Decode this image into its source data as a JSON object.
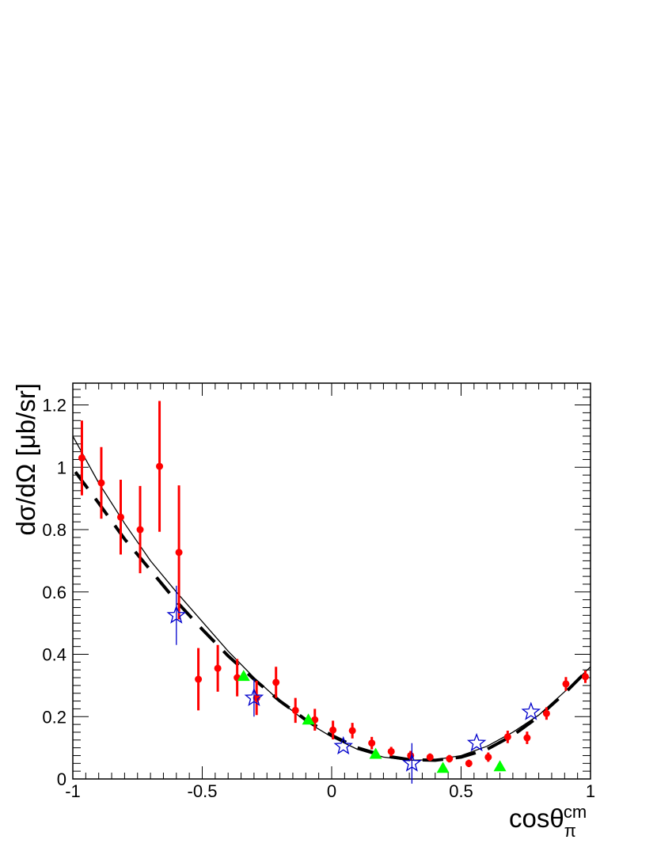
{
  "chart_data": {
    "type": "scatter",
    "xlabel": "cosθ",
    "xlabel_sub": "π",
    "xlabel_sup": "cm",
    "ylabel": "dσ/dΩ [μb/sr]",
    "xlim": [
      -1,
      1
    ],
    "ylim": [
      0,
      1.27
    ],
    "x_ticks": [
      "-1",
      "-0.5",
      "0",
      "0.5",
      "1"
    ],
    "y_ticks": [
      "0",
      "0.2",
      "0.4",
      "0.6",
      "0.8",
      "1",
      "1.2"
    ],
    "grid": false,
    "series": [
      {
        "marker": "circle",
        "color": "#ff0000",
        "points": [
          {
            "x": -0.965,
            "y": 1.03,
            "err": 0.12
          },
          {
            "x": -0.89,
            "y": 0.95,
            "err": 0.115
          },
          {
            "x": -0.815,
            "y": 0.84,
            "err": 0.12
          },
          {
            "x": -0.74,
            "y": 0.8,
            "err": 0.14
          },
          {
            "x": -0.665,
            "y": 1.003,
            "err": 0.21
          },
          {
            "x": -0.59,
            "y": 0.727,
            "err": 0.215
          },
          {
            "x": -0.515,
            "y": 0.32,
            "err": 0.1
          },
          {
            "x": -0.44,
            "y": 0.355,
            "err": 0.075
          },
          {
            "x": -0.365,
            "y": 0.325,
            "err": 0.06
          },
          {
            "x": -0.29,
            "y": 0.26,
            "err": 0.055
          },
          {
            "x": -0.215,
            "y": 0.31,
            "err": 0.05
          },
          {
            "x": -0.14,
            "y": 0.22,
            "err": 0.04
          },
          {
            "x": -0.065,
            "y": 0.19,
            "err": 0.035
          },
          {
            "x": 0.005,
            "y": 0.157,
            "err": 0.03
          },
          {
            "x": 0.08,
            "y": 0.155,
            "err": 0.025
          },
          {
            "x": 0.155,
            "y": 0.115,
            "err": 0.02
          },
          {
            "x": 0.23,
            "y": 0.088,
            "err": 0.015
          },
          {
            "x": 0.305,
            "y": 0.075,
            "err": 0.015
          },
          {
            "x": 0.38,
            "y": 0.07,
            "err": 0.012
          },
          {
            "x": 0.455,
            "y": 0.065,
            "err": 0.012
          },
          {
            "x": 0.53,
            "y": 0.05,
            "err": 0.012
          },
          {
            "x": 0.605,
            "y": 0.07,
            "err": 0.015
          },
          {
            "x": 0.68,
            "y": 0.135,
            "err": 0.02
          },
          {
            "x": 0.755,
            "y": 0.132,
            "err": 0.02
          },
          {
            "x": 0.83,
            "y": 0.21,
            "err": 0.02
          },
          {
            "x": 0.905,
            "y": 0.305,
            "err": 0.022
          },
          {
            "x": 0.98,
            "y": 0.328,
            "err": 0.02
          }
        ]
      },
      {
        "marker": "open-star",
        "color": "#0000cc",
        "points": [
          {
            "x": -0.6,
            "y": 0.525,
            "err": 0.095
          },
          {
            "x": -0.3,
            "y": 0.26,
            "err": 0.06
          },
          {
            "x": 0.045,
            "y": 0.105,
            "err": 0.0
          },
          {
            "x": 0.31,
            "y": 0.05,
            "err": 0.065
          },
          {
            "x": 0.56,
            "y": 0.115,
            "err": 0.0
          },
          {
            "x": 0.77,
            "y": 0.215,
            "err": 0.0
          }
        ]
      },
      {
        "marker": "filled-triangle",
        "color": "#00ff00",
        "points": [
          {
            "x": -0.34,
            "y": 0.33
          },
          {
            "x": -0.09,
            "y": 0.19
          },
          {
            "x": 0.17,
            "y": 0.08
          },
          {
            "x": 0.43,
            "y": 0.035
          },
          {
            "x": 0.65,
            "y": 0.04
          }
        ]
      }
    ],
    "curves": [
      {
        "style": "solid",
        "color": "#000000",
        "points": [
          {
            "x": -1.0,
            "y": 1.1
          },
          {
            "x": -0.9,
            "y": 0.95
          },
          {
            "x": -0.8,
            "y": 0.82
          },
          {
            "x": -0.7,
            "y": 0.7
          },
          {
            "x": -0.6,
            "y": 0.6
          },
          {
            "x": -0.5,
            "y": 0.505
          },
          {
            "x": -0.4,
            "y": 0.41
          },
          {
            "x": -0.3,
            "y": 0.325
          },
          {
            "x": -0.2,
            "y": 0.25
          },
          {
            "x": -0.1,
            "y": 0.185
          },
          {
            "x": 0.0,
            "y": 0.135
          },
          {
            "x": 0.1,
            "y": 0.095
          },
          {
            "x": 0.2,
            "y": 0.07
          },
          {
            "x": 0.3,
            "y": 0.06
          },
          {
            "x": 0.4,
            "y": 0.062
          },
          {
            "x": 0.5,
            "y": 0.075
          },
          {
            "x": 0.6,
            "y": 0.105
          },
          {
            "x": 0.7,
            "y": 0.15
          },
          {
            "x": 0.8,
            "y": 0.205
          },
          {
            "x": 0.9,
            "y": 0.28
          },
          {
            "x": 1.0,
            "y": 0.36
          }
        ]
      },
      {
        "style": "dashed",
        "color": "#000000",
        "points": [
          {
            "x": -0.99,
            "y": 0.985
          },
          {
            "x": -0.9,
            "y": 0.885
          },
          {
            "x": -0.8,
            "y": 0.77
          },
          {
            "x": -0.7,
            "y": 0.67
          },
          {
            "x": -0.6,
            "y": 0.57
          },
          {
            "x": -0.5,
            "y": 0.48
          },
          {
            "x": -0.4,
            "y": 0.395
          },
          {
            "x": -0.3,
            "y": 0.32
          },
          {
            "x": -0.2,
            "y": 0.25
          },
          {
            "x": -0.1,
            "y": 0.19
          },
          {
            "x": 0.0,
            "y": 0.14
          },
          {
            "x": 0.1,
            "y": 0.1
          },
          {
            "x": 0.2,
            "y": 0.075
          },
          {
            "x": 0.3,
            "y": 0.062
          },
          {
            "x": 0.4,
            "y": 0.06
          },
          {
            "x": 0.5,
            "y": 0.07
          },
          {
            "x": 0.6,
            "y": 0.095
          },
          {
            "x": 0.7,
            "y": 0.14
          },
          {
            "x": 0.8,
            "y": 0.2
          },
          {
            "x": 0.9,
            "y": 0.275
          },
          {
            "x": 0.99,
            "y": 0.35
          }
        ]
      }
    ]
  }
}
